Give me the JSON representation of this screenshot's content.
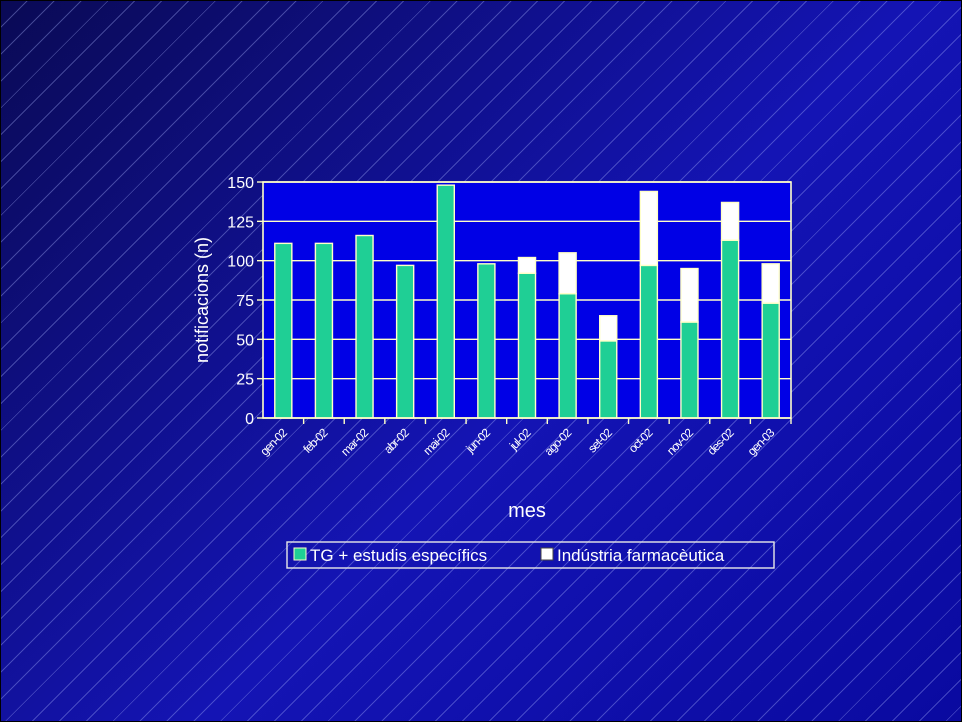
{
  "chart_data": {
    "type": "bar",
    "stacked": true,
    "categories": [
      "gen-02",
      "feb-02",
      "mar-02",
      "abr-02",
      "mai-02",
      "jun-02",
      "jul-02",
      "ago-02",
      "set-02",
      "oct-02",
      "nov-02",
      "des-02",
      "gen-03"
    ],
    "series": [
      {
        "name": "TG + estudis específics",
        "values": [
          111,
          111,
          116,
          97,
          148,
          98,
          92,
          79,
          49,
          97,
          61,
          113,
          73
        ]
      },
      {
        "name": "Indústria farmacèutica",
        "values": [
          0,
          0,
          0,
          0,
          0,
          0,
          10,
          26,
          16,
          47,
          34,
          24,
          25
        ]
      }
    ],
    "title": "",
    "xlabel": "mes",
    "ylabel": "notificacions (n)",
    "ylim": [
      0,
      150
    ],
    "yticks": [
      0,
      25,
      50,
      75,
      100,
      125,
      150
    ],
    "grid": true,
    "legend": "bottom",
    "colors": {
      "plot_background": "#0000e6",
      "series_1": "#1fcf95",
      "series_2": "#ffffff",
      "outline": "#ffffc8",
      "text": "#ffffff"
    }
  }
}
